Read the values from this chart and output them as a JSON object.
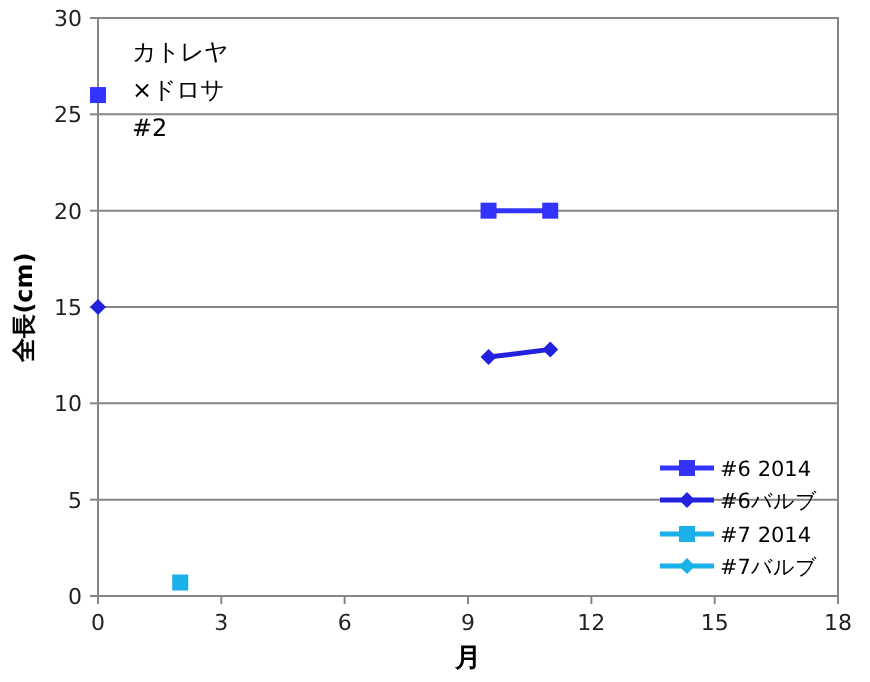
{
  "chart_data": {
    "type": "line",
    "xlabel": "月",
    "ylabel": "全長(cm)",
    "annotations": [
      "カトレヤ\n×ドロサ\n#2"
    ],
    "xlim": [
      0,
      18
    ],
    "xticks": [
      0,
      3,
      6,
      9,
      12,
      15,
      18
    ],
    "ylim": [
      0,
      30
    ],
    "yticks": [
      0,
      5,
      10,
      15,
      20,
      25,
      30
    ],
    "grid": "y",
    "legend": "bottom right",
    "series": [
      {
        "name": "#6 2014",
        "color": "#3333ff",
        "marker": "square",
        "x": [
          0,
          null,
          9.5,
          11
        ],
        "values": [
          26,
          null,
          20,
          20
        ]
      },
      {
        "name": "#6バルブ",
        "color": "#2222dd",
        "marker": "diamond",
        "x": [
          0,
          null,
          9.5,
          11
        ],
        "values": [
          15,
          null,
          12.4,
          12.8
        ]
      },
      {
        "name": "#7 2014",
        "color": "#1ab0e8",
        "marker": "square",
        "x": [
          2
        ],
        "values": [
          0.7
        ]
      },
      {
        "name": "#7バルブ",
        "color": "#1ab0e8",
        "marker": "diamond"
      }
    ]
  }
}
